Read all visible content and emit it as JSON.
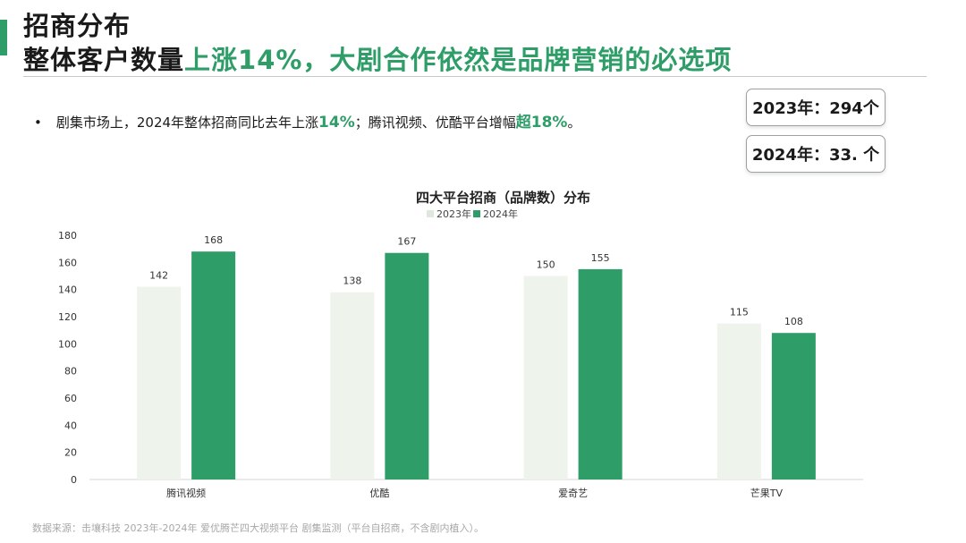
{
  "header": {
    "title_line1": "招商分布",
    "title_line2_part1": "整体客户数量",
    "title_line2_part2": "上涨14%，大剧合作依然是品牌营销的必选项"
  },
  "bullet": {
    "marker": "•",
    "text_part1": "剧集市场上，2024年整体招商同比去年上涨",
    "highlight1": "14%",
    "text_part2": "；腾讯视频、优酷平台增幅",
    "highlight2": "超18%",
    "text_part3": "。"
  },
  "stats": {
    "box1": "2023年：294个",
    "box2": "2024年：33. 个"
  },
  "footnote": "数据来源：击壤科技 2023年-2024年 爱优腾芒四大视频平台 剧集监测（平台自招商，不含剧内植入）。",
  "colors": {
    "accent": "#2e9d68",
    "bar_2023": "#eef3ec",
    "bar_2024": "#2e9d68"
  },
  "chart_data": {
    "type": "bar",
    "title": "四大平台招商（品牌数）分布",
    "categories": [
      "腾讯视频",
      "优酷",
      "爱奇艺",
      "芒果TV"
    ],
    "series": [
      {
        "name": "2023年",
        "values": [
          142,
          138,
          150,
          115
        ]
      },
      {
        "name": "2024年",
        "values": [
          168,
          167,
          155,
          108
        ]
      }
    ],
    "ylim": [
      0,
      180
    ],
    "yticks": [
      0,
      20,
      40,
      60,
      80,
      100,
      120,
      140,
      160,
      180
    ],
    "grid": false,
    "legend": "top-center",
    "data_labels": true
  }
}
